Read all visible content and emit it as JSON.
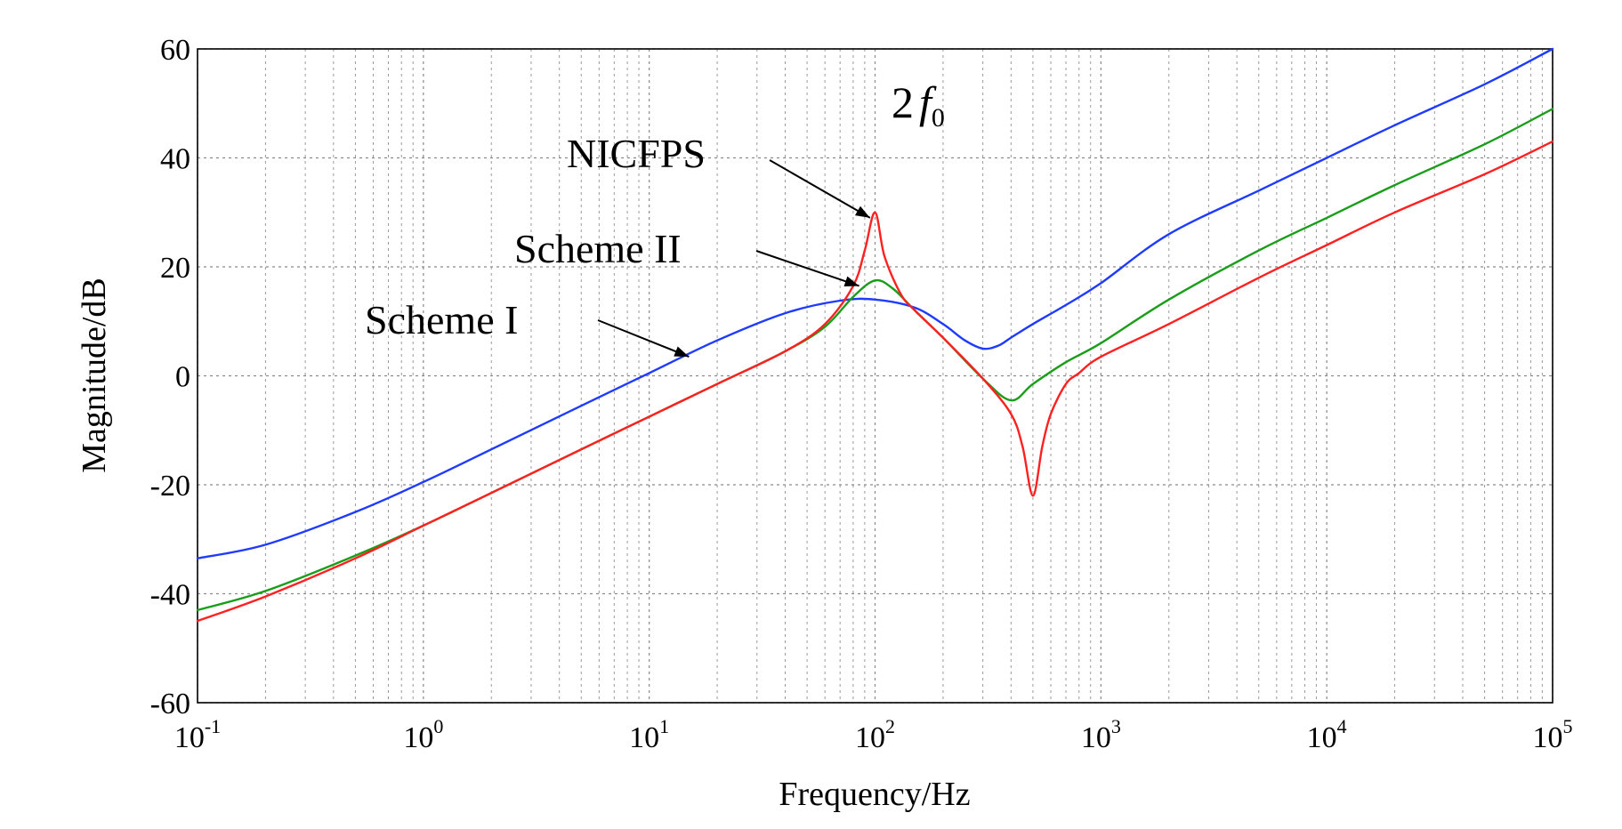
{
  "chart_data": {
    "type": "line",
    "title": "",
    "xlabel": "Frequency/Hz",
    "ylabel": "Magnitude/dB",
    "xscale": "log",
    "xlim": [
      0.1,
      100000
    ],
    "ylim": [
      -60,
      60
    ],
    "x_ticks": [
      {
        "base": "10",
        "exp": "-1",
        "value": 0.1
      },
      {
        "base": "10",
        "exp": "0",
        "value": 1
      },
      {
        "base": "10",
        "exp": "1",
        "value": 10
      },
      {
        "base": "10",
        "exp": "2",
        "value": 100
      },
      {
        "base": "10",
        "exp": "3",
        "value": 1000
      },
      {
        "base": "10",
        "exp": "4",
        "value": 10000
      },
      {
        "base": "10",
        "exp": "5",
        "value": 100000
      }
    ],
    "y_ticks": [
      "60",
      "40",
      "20",
      "0",
      "-20",
      "-40",
      "-60"
    ],
    "grid": true,
    "series": [
      {
        "name": "Scheme I",
        "color": "#1f3bff",
        "x": [
          0.1,
          0.2,
          0.5,
          1,
          2,
          5,
          10,
          20,
          40,
          70,
          100,
          150,
          200,
          250,
          300,
          350,
          400,
          500,
          700,
          1000,
          2000,
          5000,
          10000,
          20000,
          50000,
          100000
        ],
        "y": [
          -33.5,
          -31,
          -25,
          -19.5,
          -13.5,
          -5.5,
          0.5,
          6.5,
          11.5,
          13.8,
          14,
          12.5,
          9.5,
          6.5,
          5,
          5.5,
          7,
          9.5,
          13,
          17,
          26,
          34,
          40,
          46,
          53.5,
          60
        ]
      },
      {
        "name": "Scheme II",
        "color": "#1a9e1a",
        "x": [
          0.1,
          0.2,
          0.5,
          1,
          2,
          5,
          10,
          20,
          40,
          60,
          80,
          100,
          120,
          150,
          200,
          300,
          400,
          500,
          700,
          1000,
          2000,
          5000,
          10000,
          20000,
          50000,
          100000
        ],
        "y": [
          -43,
          -39.5,
          -33,
          -27.5,
          -21.5,
          -13.5,
          -7.5,
          -1.5,
          4.5,
          9,
          14.5,
          17.5,
          16,
          12,
          7,
          -0.5,
          -4.5,
          -1.5,
          2.5,
          6,
          14,
          23,
          29,
          35,
          42.5,
          49
        ]
      },
      {
        "name": "NICFPS",
        "color": "#ff2020",
        "x": [
          0.1,
          0.2,
          0.5,
          1,
          2,
          5,
          10,
          20,
          40,
          60,
          80,
          90,
          100,
          110,
          130,
          150,
          200,
          300,
          400,
          450,
          500,
          550,
          600,
          700,
          800,
          1000,
          2000,
          5000,
          10000,
          20000,
          50000,
          100000
        ],
        "y": [
          -45,
          -40.5,
          -33.5,
          -27.5,
          -21.5,
          -13.5,
          -7.5,
          -1.5,
          4.5,
          9.5,
          16.5,
          23,
          30,
          22,
          15,
          12,
          7,
          -0.5,
          -7,
          -13,
          -22,
          -13,
          -7,
          -1.5,
          0.5,
          3.5,
          9.5,
          18,
          24,
          30,
          37,
          43
        ]
      }
    ],
    "annotations": [
      {
        "id": "scheme1",
        "text": "Scheme I",
        "target_series": "Scheme I",
        "target_x": 15,
        "target_y": 3.5
      },
      {
        "id": "scheme2",
        "text": "Scheme II",
        "target_series": "Scheme II",
        "target_x": 85,
        "target_y": 16.5
      },
      {
        "id": "nicfps",
        "text": "NICFPS",
        "target_series": "NICFPS",
        "target_x": 95,
        "target_y": 29
      },
      {
        "id": "peak",
        "text_main": "2",
        "text_var": "f",
        "text_sub": "0"
      }
    ]
  }
}
